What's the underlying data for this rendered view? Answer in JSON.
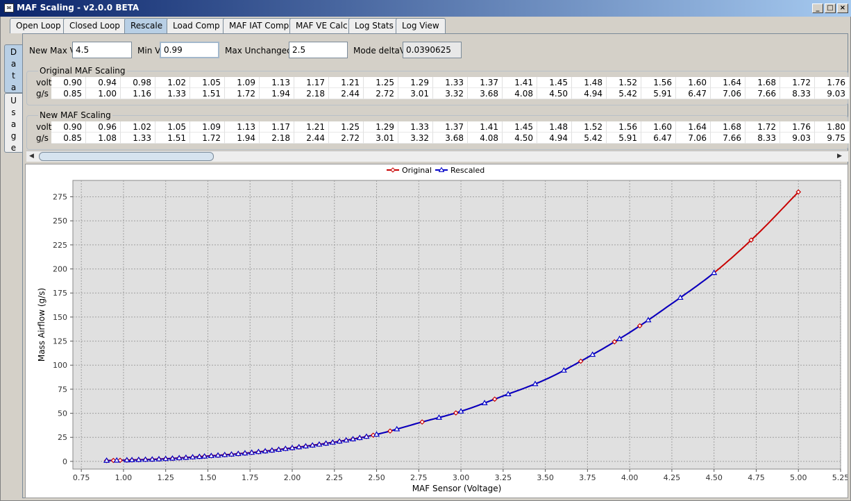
{
  "window": {
    "title": "MAF Scaling - v2.0.0 BETA",
    "minimize_label": "_",
    "maximize_label": "□",
    "close_label": "×"
  },
  "tabs": [
    {
      "label": "Open Loop"
    },
    {
      "label": "Closed Loop"
    },
    {
      "label": "Rescale",
      "active": true
    },
    {
      "label": "Load Comp"
    },
    {
      "label": "MAF IAT Comp"
    },
    {
      "label": "MAF VE Calc"
    },
    {
      "label": "Log Stats"
    },
    {
      "label": "Log View"
    }
  ],
  "side_tabs": [
    {
      "label": "Data",
      "active": true
    },
    {
      "label": "Usage"
    }
  ],
  "params": {
    "new_max_v_label": "New Max V",
    "new_max_v_value": "4.5",
    "min_v_label": "Min V",
    "min_v_value": "0.99",
    "max_unchanged_label": "Max Unchanged",
    "max_unchanged_value": "2.5",
    "mode_deltav_label": "Mode deltaV",
    "mode_deltav_value": "0.0390625"
  },
  "original_table": {
    "title": "Original MAF Scaling",
    "row_labels": [
      "volt",
      "g/s"
    ],
    "volt": [
      "0.90",
      "0.94",
      "0.98",
      "1.02",
      "1.05",
      "1.09",
      "1.13",
      "1.17",
      "1.21",
      "1.25",
      "1.29",
      "1.33",
      "1.37",
      "1.41",
      "1.45",
      "1.48",
      "1.52",
      "1.56",
      "1.60",
      "1.64",
      "1.68",
      "1.72",
      "1.76"
    ],
    "gs": [
      "0.85",
      "1.00",
      "1.16",
      "1.33",
      "1.51",
      "1.72",
      "1.94",
      "2.18",
      "2.44",
      "2.72",
      "3.01",
      "3.32",
      "3.68",
      "4.08",
      "4.50",
      "4.94",
      "5.42",
      "5.91",
      "6.47",
      "7.06",
      "7.66",
      "8.33",
      "9.03"
    ]
  },
  "new_table": {
    "title": "New MAF Scaling",
    "row_labels": [
      "volt",
      "g/s"
    ],
    "volt": [
      "0.90",
      "0.96",
      "1.02",
      "1.05",
      "1.09",
      "1.13",
      "1.17",
      "1.21",
      "1.25",
      "1.29",
      "1.33",
      "1.37",
      "1.41",
      "1.45",
      "1.48",
      "1.52",
      "1.56",
      "1.60",
      "1.64",
      "1.68",
      "1.72",
      "1.76",
      "1.80"
    ],
    "gs": [
      "0.85",
      "1.08",
      "1.33",
      "1.51",
      "1.72",
      "1.94",
      "2.18",
      "2.44",
      "2.72",
      "3.01",
      "3.32",
      "3.68",
      "4.08",
      "4.50",
      "4.94",
      "5.42",
      "5.91",
      "6.47",
      "7.06",
      "7.66",
      "8.33",
      "9.03",
      "9.75"
    ]
  },
  "scrollbar": {
    "left_arrow": "◀",
    "right_arrow": "▶"
  },
  "chart_data": {
    "type": "line",
    "title": "",
    "xlabel": "MAF Sensor (Voltage)",
    "ylabel": "Mass Airflow (g/s)",
    "xlim": [
      0.7,
      5.25
    ],
    "ylim": [
      -8,
      292
    ],
    "xticks": [
      "0.75",
      "1.00",
      "1.25",
      "1.50",
      "1.75",
      "2.00",
      "2.25",
      "2.50",
      "2.75",
      "3.00",
      "3.25",
      "3.50",
      "3.75",
      "4.00",
      "4.25",
      "4.50",
      "4.75",
      "5.00",
      "5.25"
    ],
    "yticks": [
      "0",
      "25",
      "50",
      "75",
      "100",
      "125",
      "150",
      "175",
      "200",
      "225",
      "250",
      "275"
    ],
    "grid": true,
    "legend_position": "top-center",
    "series": [
      {
        "name": "Original",
        "color": "#c80000",
        "marker": "diamond",
        "marker_voltages": [
          0.9,
          0.94,
          0.98,
          1.02,
          1.05,
          1.09,
          1.13,
          1.17,
          1.21,
          1.25,
          1.29,
          1.33,
          1.37,
          1.41,
          1.45,
          1.48,
          1.52,
          1.56,
          1.6,
          1.64,
          1.68,
          1.72,
          1.76,
          1.8,
          1.84,
          1.88,
          1.92,
          1.96,
          2.0,
          2.04,
          2.08,
          2.12,
          2.16,
          2.2,
          2.24,
          2.28,
          2.32,
          2.36,
          2.4,
          2.44,
          2.48,
          2.58,
          2.77,
          2.97,
          3.2,
          3.71,
          3.91,
          4.06,
          4.72,
          5.0
        ]
      },
      {
        "name": "Rescaled",
        "color": "#0000c8",
        "marker": "triangle",
        "marker_voltages": [
          0.9,
          0.96,
          1.02,
          1.05,
          1.09,
          1.13,
          1.17,
          1.21,
          1.25,
          1.29,
          1.33,
          1.37,
          1.41,
          1.45,
          1.48,
          1.52,
          1.56,
          1.6,
          1.64,
          1.68,
          1.72,
          1.76,
          1.8,
          1.84,
          1.88,
          1.92,
          1.96,
          2.0,
          2.04,
          2.08,
          2.12,
          2.16,
          2.2,
          2.24,
          2.28,
          2.32,
          2.36,
          2.4,
          2.44,
          2.5,
          2.62,
          2.87,
          3.0,
          3.14,
          3.28,
          3.44,
          3.61,
          3.78,
          3.94,
          4.11,
          4.3,
          4.5
        ]
      }
    ],
    "curve_points": [
      [
        0.9,
        0.85
      ],
      [
        1.0,
        1.2
      ],
      [
        1.25,
        2.7
      ],
      [
        1.5,
        5.5
      ],
      [
        1.75,
        9.0
      ],
      [
        2.0,
        14.0
      ],
      [
        2.25,
        20.0
      ],
      [
        2.5,
        28.0
      ],
      [
        2.75,
        40.0
      ],
      [
        3.0,
        52.0
      ],
      [
        3.25,
        68.0
      ],
      [
        3.5,
        85.0
      ],
      [
        3.75,
        108.0
      ],
      [
        4.0,
        134.0
      ],
      [
        4.25,
        164.0
      ],
      [
        4.5,
        196.0
      ],
      [
        4.75,
        235.0
      ],
      [
        5.0,
        280.0
      ]
    ],
    "rescaled_max_v": 4.5
  }
}
